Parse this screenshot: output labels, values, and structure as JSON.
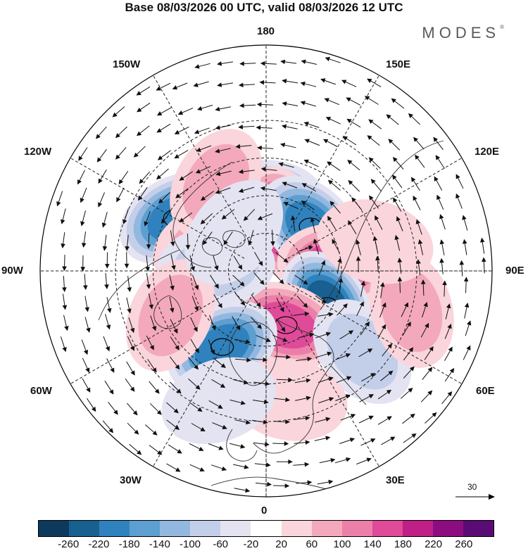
{
  "title": "Base 08/03/2026 00 UTC, valid 08/03/2026 12 UTC",
  "brand": "MODES",
  "brand_mark": "®",
  "longitude_labels": {
    "n180": "180",
    "w150": "150W",
    "e150": "150E",
    "w120": "120W",
    "e120": "120E",
    "w90": "90W",
    "e90": "90E",
    "w60": "60W",
    "e60": "60E",
    "w30": "30W",
    "e30": "30E",
    "s0": "0"
  },
  "reference_vector": "30",
  "colorbar": {
    "colors": [
      "#0d3a5c",
      "#17608f",
      "#2f82bd",
      "#5d9fd0",
      "#93b8e0",
      "#c3cfe9",
      "#e4e3f1",
      "#ffffff",
      "#fad5dc",
      "#f3a9bb",
      "#ec7fa9",
      "#df4b98",
      "#c01f87",
      "#8d0d80",
      "#5b0b74"
    ],
    "ticks": [
      "-260",
      "-220",
      "-180",
      "-140",
      "-100",
      "-60",
      "-20",
      "20",
      "60",
      "100",
      "140",
      "180",
      "220",
      "260"
    ]
  },
  "anomaly_centers": [
    {
      "lon": 180,
      "lat": 62,
      "value": -160
    },
    {
      "lon": -120,
      "lat": 48,
      "value": -200
    },
    {
      "lon": 160,
      "lat": 70,
      "value": 190
    },
    {
      "lon": 135,
      "lat": 65,
      "value": -190
    },
    {
      "lon": 95,
      "lat": 62,
      "value": 160
    },
    {
      "lon": 60,
      "lat": 62,
      "value": -230
    },
    {
      "lon": 20,
      "lat": 67,
      "value": 170
    },
    {
      "lon": -30,
      "lat": 55,
      "value": -200
    },
    {
      "lon": -115,
      "lat": 65,
      "value": 90
    },
    {
      "lon": -95,
      "lat": 70,
      "value": -70
    },
    {
      "lon": -65,
      "lat": 48,
      "value": 60
    },
    {
      "lon": -150,
      "lat": 50,
      "value": 80
    },
    {
      "lon": 50,
      "lat": 40,
      "value": -90
    },
    {
      "lon": 75,
      "lat": 30,
      "value": 80
    },
    {
      "lon": 10,
      "lat": 38,
      "value": 50
    },
    {
      "lon": 105,
      "lat": 45,
      "value": 40
    },
    {
      "lon": -20,
      "lat": 35,
      "value": -30
    },
    {
      "lon": -140,
      "lat": 70,
      "value": -50
    }
  ]
}
